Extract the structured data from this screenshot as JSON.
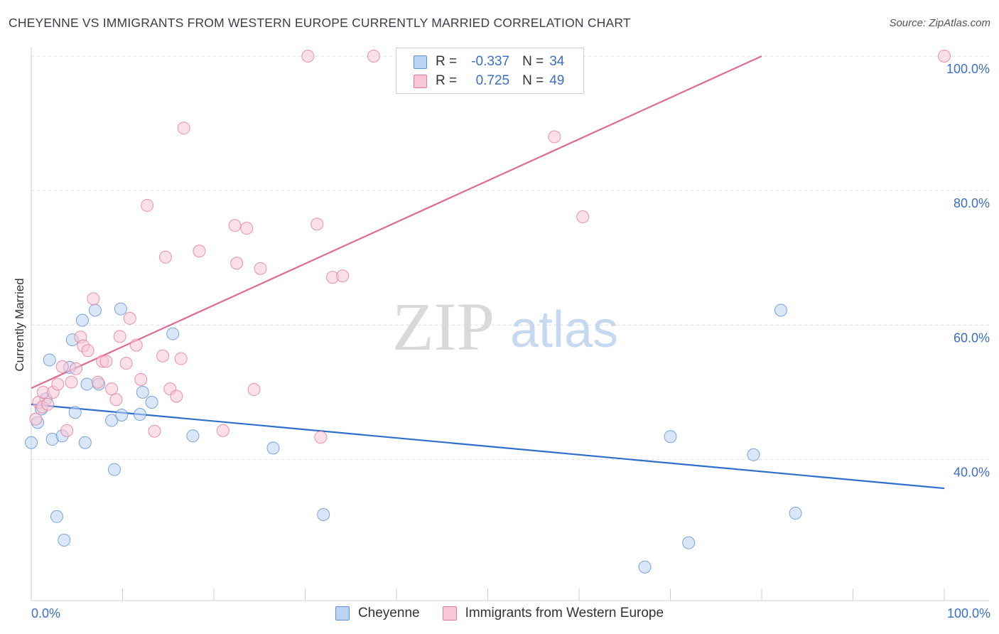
{
  "title": "CHEYENNE VS IMMIGRANTS FROM WESTERN EUROPE CURRENTLY MARRIED CORRELATION CHART",
  "source": "Source: ZipAtlas.com",
  "watermark": {
    "part1": "ZIP",
    "part2": "atlas"
  },
  "legend": {
    "rows": [
      {
        "r_label": "R =",
        "r_value": "-0.337",
        "n_label": "N =",
        "n_value": "34"
      },
      {
        "r_label": "R =",
        "r_value": "0.725",
        "n_label": "N =",
        "n_value": "49"
      }
    ]
  },
  "bottom_legend": [
    "Cheyenne",
    "Immigrants from Western Europe"
  ],
  "chart_data": {
    "type": "scatter",
    "title": "CHEYENNE VS IMMIGRANTS FROM WESTERN EUROPE CURRENTLY MARRIED CORRELATION CHART",
    "xlabel": "",
    "ylabel": "Currently Married",
    "xlim": [
      0,
      100
    ],
    "ylim": [
      19,
      100
    ],
    "x_tick_labels": [
      "0.0%",
      "100.0%"
    ],
    "y_ticks": [
      40,
      60,
      80,
      100
    ],
    "y_tick_labels": [
      "40.0%",
      "60.0%",
      "80.0%",
      "100.0%"
    ],
    "grid": true,
    "legend_position": "top-center",
    "series": [
      {
        "name": "Cheyenne",
        "color": "#5b8fd6",
        "fill": "#bcd4f4",
        "trend": {
          "x": [
            0,
            100
          ],
          "y": [
            48.2,
            35.7
          ]
        },
        "points": [
          [
            0.0,
            42.5
          ],
          [
            0.7,
            45.5
          ],
          [
            1.1,
            47.5
          ],
          [
            1.6,
            49.0
          ],
          [
            2.0,
            54.8
          ],
          [
            2.3,
            43.0
          ],
          [
            2.8,
            31.5
          ],
          [
            3.4,
            43.5
          ],
          [
            3.6,
            28.0
          ],
          [
            4.2,
            53.7
          ],
          [
            4.5,
            57.8
          ],
          [
            4.8,
            47.0
          ],
          [
            5.6,
            60.7
          ],
          [
            5.9,
            42.5
          ],
          [
            6.1,
            51.2
          ],
          [
            7.0,
            62.2
          ],
          [
            7.4,
            51.2
          ],
          [
            8.8,
            45.8
          ],
          [
            9.1,
            38.5
          ],
          [
            9.8,
            62.4
          ],
          [
            9.9,
            46.6
          ],
          [
            11.9,
            46.7
          ],
          [
            12.2,
            50.0
          ],
          [
            13.2,
            48.5
          ],
          [
            15.5,
            58.7
          ],
          [
            17.7,
            43.5
          ],
          [
            26.5,
            41.7
          ],
          [
            32.0,
            31.8
          ],
          [
            67.2,
            24.0
          ],
          [
            70.0,
            43.4
          ],
          [
            72.0,
            27.6
          ],
          [
            79.1,
            40.7
          ],
          [
            82.1,
            62.2
          ],
          [
            83.7,
            32.0
          ]
        ]
      },
      {
        "name": "Immigrants from Western Europe",
        "color": "#e5799b",
        "fill": "#f8c6d5",
        "trend": {
          "x": [
            0,
            80
          ],
          "y": [
            50.6,
            100
          ]
        },
        "points": [
          [
            0.5,
            46.0
          ],
          [
            0.8,
            48.5
          ],
          [
            1.2,
            47.8
          ],
          [
            1.3,
            50.0
          ],
          [
            1.8,
            48.2
          ],
          [
            2.4,
            50.0
          ],
          [
            2.9,
            51.2
          ],
          [
            3.4,
            53.8
          ],
          [
            3.9,
            44.3
          ],
          [
            4.4,
            51.5
          ],
          [
            4.9,
            53.5
          ],
          [
            5.4,
            58.2
          ],
          [
            5.7,
            56.9
          ],
          [
            6.2,
            56.2
          ],
          [
            6.8,
            63.9
          ],
          [
            7.3,
            51.5
          ],
          [
            7.8,
            54.6
          ],
          [
            8.2,
            54.6
          ],
          [
            8.8,
            50.5
          ],
          [
            9.3,
            48.9
          ],
          [
            9.7,
            58.3
          ],
          [
            10.4,
            54.3
          ],
          [
            10.8,
            61.0
          ],
          [
            11.5,
            57.0
          ],
          [
            12.0,
            51.9
          ],
          [
            12.7,
            77.8
          ],
          [
            13.5,
            44.2
          ],
          [
            14.4,
            55.4
          ],
          [
            14.7,
            70.1
          ],
          [
            15.2,
            50.5
          ],
          [
            15.9,
            49.4
          ],
          [
            16.4,
            55.0
          ],
          [
            16.7,
            89.3
          ],
          [
            18.4,
            71.0
          ],
          [
            21.0,
            44.3
          ],
          [
            22.3,
            74.8
          ],
          [
            22.5,
            69.2
          ],
          [
            23.6,
            74.4
          ],
          [
            24.4,
            50.4
          ],
          [
            25.1,
            68.4
          ],
          [
            30.3,
            100.0
          ],
          [
            31.3,
            75.0
          ],
          [
            31.7,
            43.3
          ],
          [
            33.0,
            67.1
          ],
          [
            34.1,
            67.3
          ],
          [
            37.5,
            100.0
          ],
          [
            57.3,
            88.0
          ],
          [
            60.4,
            76.1
          ],
          [
            100.0,
            100.0
          ]
        ]
      }
    ]
  }
}
